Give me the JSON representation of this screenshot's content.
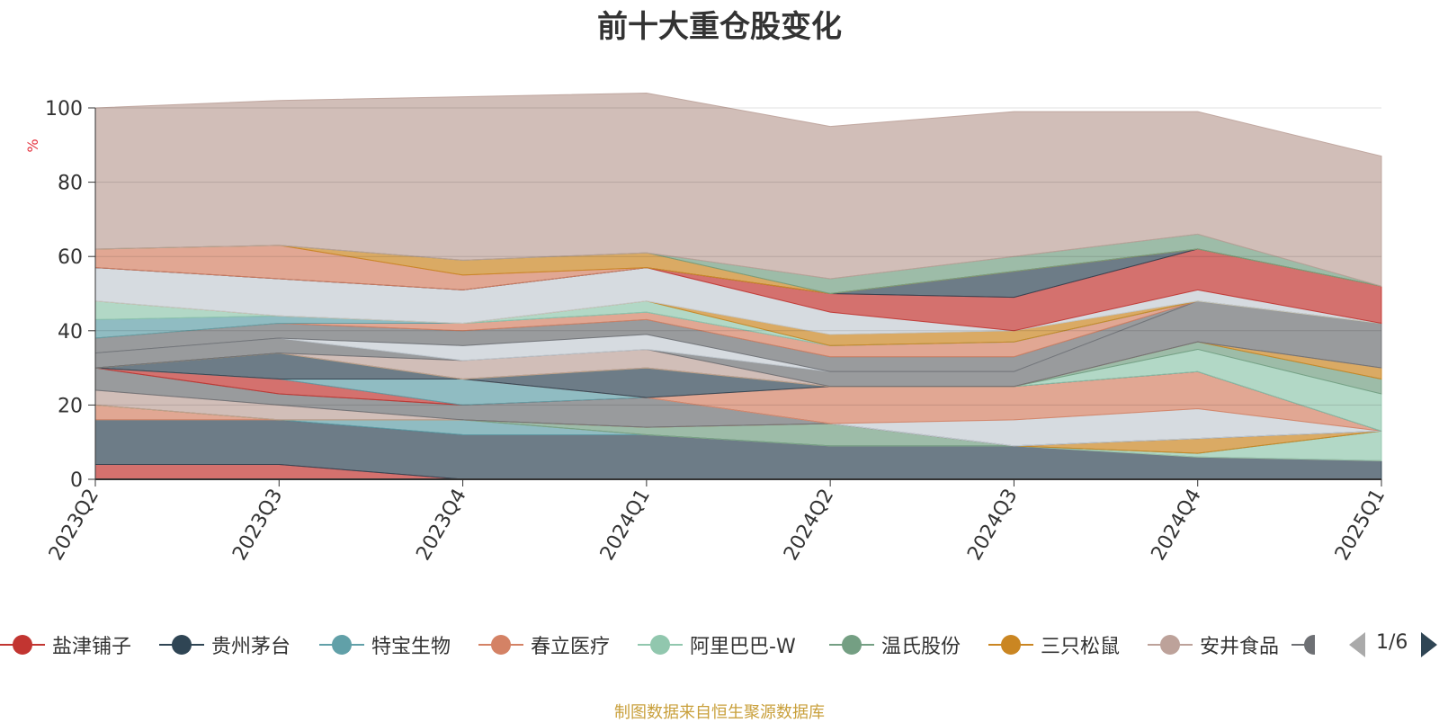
{
  "chart_data": {
    "type": "area",
    "title": "前十大重仓股变化",
    "ylabel": "%",
    "ylim": [
      0,
      100
    ],
    "yticks": [
      0,
      20,
      40,
      60,
      80,
      100
    ],
    "categories": [
      "2023Q2",
      "2023Q3",
      "2023Q4",
      "2024Q1",
      "2024Q2",
      "2024Q3",
      "2024Q4",
      "2025Q1"
    ],
    "grid": true,
    "legend_position": "bottom",
    "source_note": "制图数据来自恒生聚源数据库",
    "legend_page": "1/6",
    "series": [
      {
        "name": "盐津铺子",
        "color": "#c23531",
        "values": [
          4,
          4,
          0,
          0,
          0,
          0,
          0,
          0
        ]
      },
      {
        "name": "贵州茅台",
        "color": "#2f4554",
        "values": [
          12,
          12,
          12,
          12,
          9,
          9,
          6,
          5
        ]
      },
      {
        "name": "特宝生物",
        "color": "#61a0a8",
        "values": [
          0,
          0,
          4,
          0,
          0,
          0,
          0,
          0
        ]
      },
      {
        "name": "春立医疗",
        "color": "#d48265",
        "values": [
          4,
          0,
          0,
          0,
          0,
          0,
          0,
          0
        ]
      },
      {
        "name": "阿里巴巴-W",
        "color": "#91c7ae",
        "values": [
          0,
          0,
          0,
          0,
          0,
          0,
          1,
          8
        ]
      },
      {
        "name": "温氏股份",
        "color": "#749f83",
        "values": [
          0,
          0,
          0,
          2,
          6,
          0,
          0,
          0
        ]
      },
      {
        "name": "三只松鼠",
        "color": "#ca8622",
        "values": [
          0,
          0,
          0,
          0,
          0,
          0,
          4,
          0
        ]
      },
      {
        "name": "安井食品",
        "color": "#bda29a",
        "values": [
          4,
          4,
          0,
          0,
          0,
          0,
          0,
          0
        ]
      },
      {
        "name": "",
        "color": "#6e7074",
        "values": [
          6,
          3,
          4,
          8,
          0,
          0,
          0,
          0
        ]
      },
      {
        "name": "",
        "color": "#c23531",
        "values": [
          0,
          4,
          0,
          0,
          0,
          0,
          0,
          0
        ]
      },
      {
        "name": "",
        "color": "#61a0a8",
        "values": [
          0,
          0,
          7,
          0,
          0,
          0,
          0,
          0
        ]
      },
      {
        "name": "",
        "color": "#c4ccd3",
        "values": [
          0,
          0,
          0,
          0,
          0,
          7,
          8,
          0
        ]
      },
      {
        "name": "",
        "color": "#d48265",
        "values": [
          0,
          0,
          0,
          0,
          10,
          9,
          10,
          0
        ]
      },
      {
        "name": "",
        "color": "#2f4554",
        "values": [
          0,
          7,
          0,
          8,
          0,
          0,
          0,
          0
        ]
      },
      {
        "name": "",
        "color": "#91c7ae",
        "values": [
          0,
          0,
          0,
          0,
          0,
          0,
          6,
          10
        ]
      },
      {
        "name": "",
        "color": "#749f83",
        "values": [
          0,
          0,
          0,
          0,
          0,
          0,
          2,
          4
        ]
      },
      {
        "name": "",
        "color": "#ca8622",
        "values": [
          0,
          0,
          0,
          0,
          0,
          0,
          0,
          3
        ]
      },
      {
        "name": "",
        "color": "#bda29a",
        "values": [
          0,
          0,
          5,
          5,
          0,
          0,
          0,
          0
        ]
      },
      {
        "name": "",
        "color": "#6e7074",
        "values": [
          4,
          4,
          0,
          0,
          4,
          4,
          11,
          12
        ]
      },
      {
        "name": "",
        "color": "#c4ccd3",
        "values": [
          0,
          0,
          4,
          4,
          0,
          0,
          0,
          0
        ]
      },
      {
        "name": "",
        "color": "#6e7074",
        "values": [
          4,
          4,
          4,
          4,
          4,
          4,
          0,
          0
        ]
      },
      {
        "name": "",
        "color": "#d48265",
        "values": [
          0,
          0,
          2,
          2,
          3,
          4,
          0,
          0
        ]
      },
      {
        "name": "",
        "color": "#61a0a8",
        "values": [
          5,
          2,
          0,
          0,
          0,
          0,
          0,
          0
        ]
      },
      {
        "name": "",
        "color": "#91c7ae",
        "values": [
          5,
          0,
          0,
          3,
          0,
          0,
          0,
          0
        ]
      },
      {
        "name": "",
        "color": "#ca8622",
        "values": [
          0,
          0,
          0,
          0,
          3,
          3,
          0,
          0
        ]
      },
      {
        "name": "",
        "color": "#c4ccd3",
        "values": [
          9,
          10,
          9,
          9,
          6,
          0,
          3,
          0
        ]
      },
      {
        "name": "",
        "color": "#c23531",
        "values": [
          0,
          0,
          0,
          0,
          5,
          9,
          11,
          10
        ]
      },
      {
        "name": "",
        "color": "#2f4554",
        "values": [
          0,
          0,
          0,
          0,
          0,
          7,
          0,
          0
        ]
      },
      {
        "name": "",
        "color": "#d48265",
        "values": [
          5,
          9,
          4,
          0,
          0,
          0,
          0,
          0
        ]
      },
      {
        "name": "",
        "color": "#ca8622",
        "values": [
          0,
          0,
          4,
          4,
          0,
          0,
          0,
          0
        ]
      },
      {
        "name": "",
        "color": "#749f83",
        "values": [
          0,
          0,
          0,
          0,
          4,
          4,
          4,
          0
        ]
      },
      {
        "name": "",
        "color": "#bda29a",
        "values": [
          38,
          39,
          44,
          43,
          41,
          39,
          33,
          35
        ]
      }
    ]
  }
}
